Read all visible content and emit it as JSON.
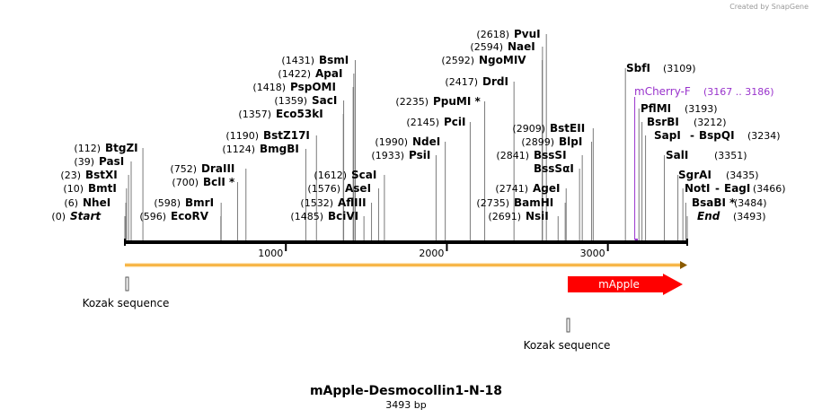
{
  "credit": "Created by SnapGene",
  "title": "mApple-Desmocollin1-N-18",
  "subtitle": "3493 bp",
  "sequence_length": 3493,
  "ruler_ticks": [
    {
      "value": 1000,
      "label": "1000"
    },
    {
      "value": 2000,
      "label": "2000"
    },
    {
      "value": 3000,
      "label": "3000"
    }
  ],
  "sites": [
    {
      "name": "Start",
      "pos": "(0)",
      "value": 0,
      "italic": true
    },
    {
      "name": "NheI",
      "pos": "(6)",
      "value": 6
    },
    {
      "name": "BmtI",
      "pos": "(10)",
      "value": 10
    },
    {
      "name": "BstXI",
      "pos": "(23)",
      "value": 23
    },
    {
      "name": "PasI",
      "pos": "(39)",
      "value": 39
    },
    {
      "name": "BtgZI",
      "pos": "(112)",
      "value": 112
    },
    {
      "name": "EcoRV",
      "pos": "(596)",
      "value": 596
    },
    {
      "name": "BmrI",
      "pos": "(598)",
      "value": 598
    },
    {
      "name": "BclI *",
      "pos": "(700)",
      "value": 700
    },
    {
      "name": "DraIII",
      "pos": "(752)",
      "value": 752
    },
    {
      "name": "BmgBI",
      "pos": "(1124)",
      "value": 1124
    },
    {
      "name": "BstZ17I",
      "pos": "(1190)",
      "value": 1190
    },
    {
      "name": "Eco53kI",
      "pos": "(1357)",
      "value": 1357
    },
    {
      "name": "SacI",
      "pos": "(1359)",
      "value": 1359
    },
    {
      "name": "PspOMI",
      "pos": "(1418)",
      "value": 1418
    },
    {
      "name": "ApaI",
      "pos": "(1422)",
      "value": 1422
    },
    {
      "name": "BsmI",
      "pos": "(1431)",
      "value": 1431
    },
    {
      "name": "BciVI",
      "pos": "(1485)",
      "value": 1485
    },
    {
      "name": "AflIII",
      "pos": "(1532)",
      "value": 1532
    },
    {
      "name": "AseI",
      "pos": "(1576)",
      "value": 1576
    },
    {
      "name": "ScaI",
      "pos": "(1612)",
      "value": 1612
    },
    {
      "name": "PsiI",
      "pos": "(1933)",
      "value": 1933
    },
    {
      "name": "NdeI",
      "pos": "(1990)",
      "value": 1990
    },
    {
      "name": "PciI",
      "pos": "(2145)",
      "value": 2145
    },
    {
      "name": "PpuMI *",
      "pos": "(2235)",
      "value": 2235
    },
    {
      "name": "DrdI",
      "pos": "(2417)",
      "value": 2417
    },
    {
      "name": "NgoMIV",
      "pos": "(2592)",
      "value": 2592
    },
    {
      "name": "NaeI",
      "pos": "(2594)",
      "value": 2594
    },
    {
      "name": "PvuI",
      "pos": "(2618)",
      "value": 2618
    },
    {
      "name": "NsiI",
      "pos": "(2691)",
      "value": 2691
    },
    {
      "name": "BamHI",
      "pos": "(2735)",
      "value": 2735
    },
    {
      "name": "AgeI",
      "pos": "(2741)",
      "value": 2741
    },
    {
      "name": "BssSαI",
      "pos": "",
      "value": 2841
    },
    {
      "name": "BssSI",
      "pos": "(2841)",
      "value": 2841
    },
    {
      "name": "BlpI",
      "pos": "(2899)",
      "value": 2899
    },
    {
      "name": "BstEII",
      "pos": "(2909)",
      "value": 2909
    },
    {
      "name": "SbfI",
      "pos": "(3109)",
      "value": 3109
    },
    {
      "name": "PflMI",
      "pos": "(3193)",
      "value": 3193
    },
    {
      "name": "BsrBI",
      "pos": "(3212)",
      "value": 3212
    },
    {
      "name": "SapI",
      "name2": "BspQI",
      "pos": "(3234)",
      "value": 3234
    },
    {
      "name": "SalI",
      "pos": "(3351)",
      "value": 3351
    },
    {
      "name": "SgrAI",
      "pos": "(3435)",
      "value": 3435
    },
    {
      "name": "NotI",
      "name2": "EagI",
      "pos": "(3466)",
      "value": 3466
    },
    {
      "name": "BsaBI *",
      "pos": "(3484)",
      "value": 3484
    },
    {
      "name": "End",
      "pos": "(3493)",
      "value": 3493,
      "italic": true
    }
  ],
  "primer": {
    "name": "mCherry-F",
    "pos": "(3167 .. 3186)",
    "start": 3167,
    "end": 3186,
    "color": "#9933cc"
  },
  "orf": {
    "start": 0,
    "end": 3493,
    "color": "#f5a623"
  },
  "features": [
    {
      "label": "Kozak sequence",
      "start": 0,
      "end": 10,
      "color": "#d0d0d0"
    },
    {
      "label": "mApple",
      "start": 2750,
      "end": 3450,
      "color": "#ff0000",
      "text_color": "#ffffff"
    },
    {
      "label": "Kozak sequence",
      "start": 2745,
      "end": 2755,
      "color": "#d0d0d0"
    }
  ],
  "colors": {
    "backbone": "#000000",
    "leader": "#7a7a7a"
  }
}
